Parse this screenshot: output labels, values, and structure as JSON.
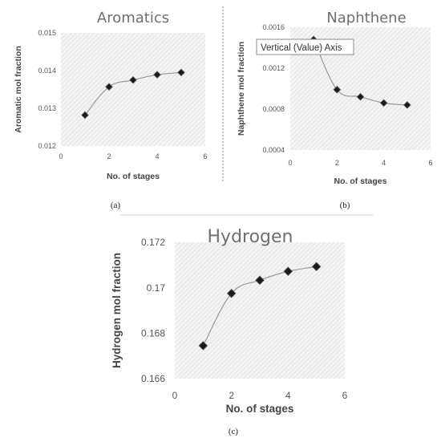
{
  "captions": {
    "a": "(a)",
    "b": "(b)",
    "c": "(c)"
  },
  "tooltip": {
    "text": "Vertical (Value) Axis"
  },
  "colors": {
    "plot_fill": "#f4f4f4",
    "hatch": "#dcdcdc",
    "line": "#9a9a9a",
    "marker": "#1a1a1a"
  },
  "chart_data": [
    {
      "id": "a",
      "type": "scatter",
      "title": "Aromatics",
      "xlabel": "No. of stages",
      "ylabel": "Aromatic mol fraction",
      "xlim": [
        0,
        6
      ],
      "ylim": [
        0.012,
        0.015
      ],
      "xticks": [
        0,
        2,
        4,
        6
      ],
      "yticks": [
        "0.012",
        "0.013",
        "0.014",
        "0.015"
      ],
      "grid": false,
      "x": [
        1,
        2,
        3,
        4,
        5
      ],
      "y": [
        0.01282,
        0.01357,
        0.01375,
        0.01389,
        0.01395
      ]
    },
    {
      "id": "b",
      "type": "scatter",
      "title": "Naphthene",
      "xlabel": "No. of stages",
      "ylabel": "Naphthene mol fraction",
      "xlim": [
        0,
        6
      ],
      "ylim": [
        0.0004,
        0.0016
      ],
      "xticks": [
        0,
        2,
        4,
        6
      ],
      "yticks": [
        "0.0004",
        "0.0008",
        "0.0012",
        "0.0016"
      ],
      "grid": false,
      "x": [
        1,
        2,
        3,
        4,
        5
      ],
      "y": [
        0.00148,
        0.00099,
        0.00092,
        0.00086,
        0.00084
      ]
    },
    {
      "id": "c",
      "type": "scatter",
      "title": "Hydrogen",
      "xlabel": "No. of stages",
      "ylabel": "Hydrogen mol fraction",
      "xlim": [
        0,
        6
      ],
      "ylim": [
        0.166,
        0.172
      ],
      "xticks": [
        0,
        2,
        4,
        6
      ],
      "yticks": [
        "0.166",
        "0.168",
        "0.17",
        "0.172"
      ],
      "grid": false,
      "x": [
        1,
        2,
        3,
        4,
        5
      ],
      "y": [
        0.16745,
        0.16975,
        0.17033,
        0.17072,
        0.17093
      ]
    }
  ]
}
